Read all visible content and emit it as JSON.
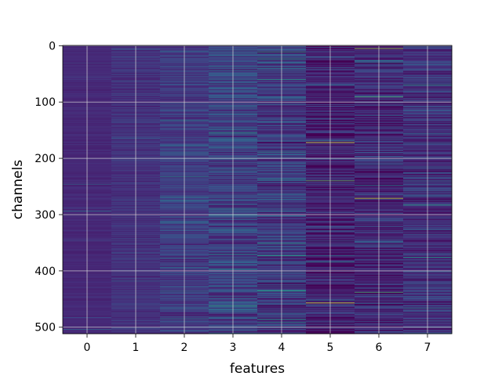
{
  "chart_data": {
    "type": "heatmap",
    "title": "",
    "xlabel": "features",
    "ylabel": "channels",
    "colormap": "viridis",
    "grid": true,
    "x_categories": [
      "0",
      "1",
      "2",
      "3",
      "4",
      "5",
      "6",
      "7"
    ],
    "y_range": [
      0,
      511
    ],
    "y_inverted": true,
    "y_ticks": [
      "0",
      "100",
      "200",
      "300",
      "400",
      "500"
    ],
    "num_channels": 512,
    "column_intensity_profile": [
      {
        "feature": 0,
        "base": 0.12,
        "spread": 0.03
      },
      {
        "feature": 1,
        "base": 0.15,
        "spread": 0.06
      },
      {
        "feature": 2,
        "base": 0.18,
        "spread": 0.09
      },
      {
        "feature": 3,
        "base": 0.2,
        "spread": 0.14
      },
      {
        "feature": 4,
        "base": 0.17,
        "spread": 0.15
      },
      {
        "feature": 5,
        "base": 0.09,
        "spread": 0.14
      },
      {
        "feature": 6,
        "base": 0.12,
        "spread": 0.15
      },
      {
        "feature": 7,
        "base": 0.14,
        "spread": 0.13
      }
    ],
    "highlights": [
      {
        "feature": 5,
        "channel": 172,
        "value": 0.95
      },
      {
        "feature": 5,
        "channel": 457,
        "value": 0.97
      },
      {
        "feature": 5,
        "channel": 240,
        "value": 0.75
      },
      {
        "feature": 6,
        "channel": 271,
        "value": 0.92
      },
      {
        "feature": 6,
        "channel": 5,
        "value": 0.85
      },
      {
        "feature": 6,
        "channel": 91,
        "value": 0.7
      },
      {
        "feature": 6,
        "channel": 438,
        "value": 0.7
      },
      {
        "feature": 4,
        "channel": 11,
        "value": 0.6
      },
      {
        "feature": 4,
        "channel": 60,
        "value": 0.55
      },
      {
        "feature": 4,
        "channel": 373,
        "value": 0.6
      },
      {
        "feature": 4,
        "channel": 435,
        "value": 0.6
      },
      {
        "feature": 3,
        "channel": 155,
        "value": 0.55
      },
      {
        "feature": 3,
        "channel": 462,
        "value": 0.6
      },
      {
        "feature": 3,
        "channel": 370,
        "value": 0.5
      },
      {
        "feature": 7,
        "channel": 70,
        "value": 0.55
      },
      {
        "feature": 7,
        "channel": 283,
        "value": 0.6
      },
      {
        "feature": 7,
        "channel": 376,
        "value": 0.55
      },
      {
        "feature": 2,
        "channel": 233,
        "value": 0.5
      },
      {
        "feature": 2,
        "channel": 485,
        "value": 0.45
      }
    ]
  }
}
